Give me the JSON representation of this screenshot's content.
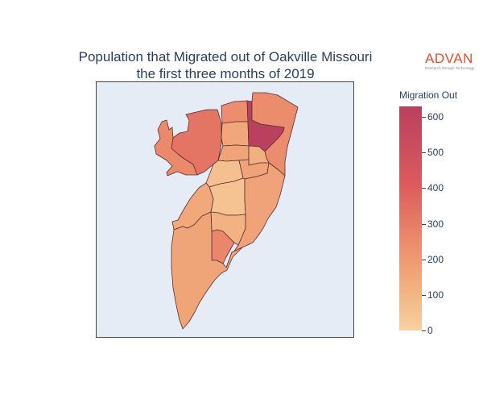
{
  "title": {
    "line1": "Population that Migrated out of Oakville Missouri",
    "line2": "the first three months of 2019"
  },
  "logo": {
    "word": "ADVAN",
    "tagline": "Research through Technology"
  },
  "colorbar": {
    "title": "Migration Out",
    "min": 0,
    "max": 630,
    "ticks": [
      "0",
      "100",
      "200",
      "300",
      "400",
      "500",
      "600"
    ],
    "tick_values": [
      0,
      100,
      200,
      300,
      400,
      500,
      600
    ],
    "colors": [
      "#f7d2a0",
      "#f2ae7e",
      "#eb8b6b",
      "#dc5b5d",
      "#b9405f"
    ]
  },
  "map": {
    "background": "#e5ecf6",
    "border_color": "#5a2f2f",
    "regions": [
      {
        "id": "west-peninsula",
        "value": 320
      },
      {
        "id": "northwest",
        "value": 390
      },
      {
        "id": "north-center",
        "value": 300
      },
      {
        "id": "top-center",
        "value": 190
      },
      {
        "id": "northeast-peak",
        "value": 630
      },
      {
        "id": "northeast",
        "value": 310
      },
      {
        "id": "center-top",
        "value": 200
      },
      {
        "id": "center-mid",
        "value": 80
      },
      {
        "id": "center-small",
        "value": 150
      },
      {
        "id": "center-north-right",
        "value": 210
      },
      {
        "id": "center-lower",
        "value": 70
      },
      {
        "id": "east-long",
        "value": 210
      },
      {
        "id": "west-central",
        "value": 180
      },
      {
        "id": "south-center-red",
        "value": 330
      },
      {
        "id": "south-center",
        "value": 140
      },
      {
        "id": "south-large",
        "value": 200
      }
    ]
  }
}
